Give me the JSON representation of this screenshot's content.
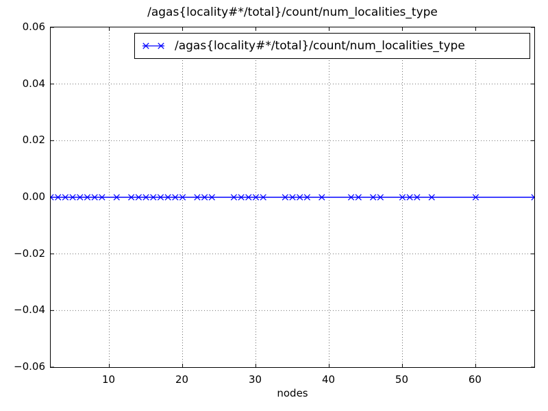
{
  "chart_data": {
    "type": "line",
    "title": "/agas{locality#*/total}/count/num_localities_type",
    "xlabel": "nodes",
    "ylabel": "",
    "xlim": [
      2,
      68
    ],
    "ylim": [
      -0.06,
      0.06
    ],
    "xticks": [
      10,
      20,
      30,
      40,
      50,
      60
    ],
    "xtick_labels": [
      "10",
      "20",
      "30",
      "40",
      "50",
      "60"
    ],
    "yticks": [
      0.06,
      0.04,
      0.02,
      0.0,
      -0.02,
      -0.04,
      -0.06
    ],
    "ytick_labels": [
      "0.06",
      "0.04",
      "0.02",
      "0.00",
      "−0.02",
      "−0.04",
      "−0.06"
    ],
    "grid": true,
    "grid_style": "dotted",
    "legend_position": "upper center inside",
    "series": [
      {
        "name": "/agas{locality#*/total}/count/num_localities_type",
        "color": "#0000ff",
        "marker": "x",
        "x": [
          2,
          3,
          4,
          5,
          6,
          7,
          8,
          9,
          11,
          13,
          14,
          15,
          16,
          17,
          18,
          19,
          20,
          22,
          23,
          24,
          27,
          28,
          29,
          30,
          31,
          34,
          35,
          36,
          37,
          39,
          43,
          44,
          46,
          47,
          50,
          51,
          52,
          54,
          60,
          68
        ],
        "y": [
          0,
          0,
          0,
          0,
          0,
          0,
          0,
          0,
          0,
          0,
          0,
          0,
          0,
          0,
          0,
          0,
          0,
          0,
          0,
          0,
          0,
          0,
          0,
          0,
          0,
          0,
          0,
          0,
          0,
          0,
          0,
          0,
          0,
          0,
          0,
          0,
          0,
          0,
          0,
          0
        ]
      }
    ]
  },
  "colors": {
    "line": "#0000ff",
    "axis": "#000000",
    "grid": "#222222",
    "text": "#000000",
    "background": "#ffffff"
  }
}
